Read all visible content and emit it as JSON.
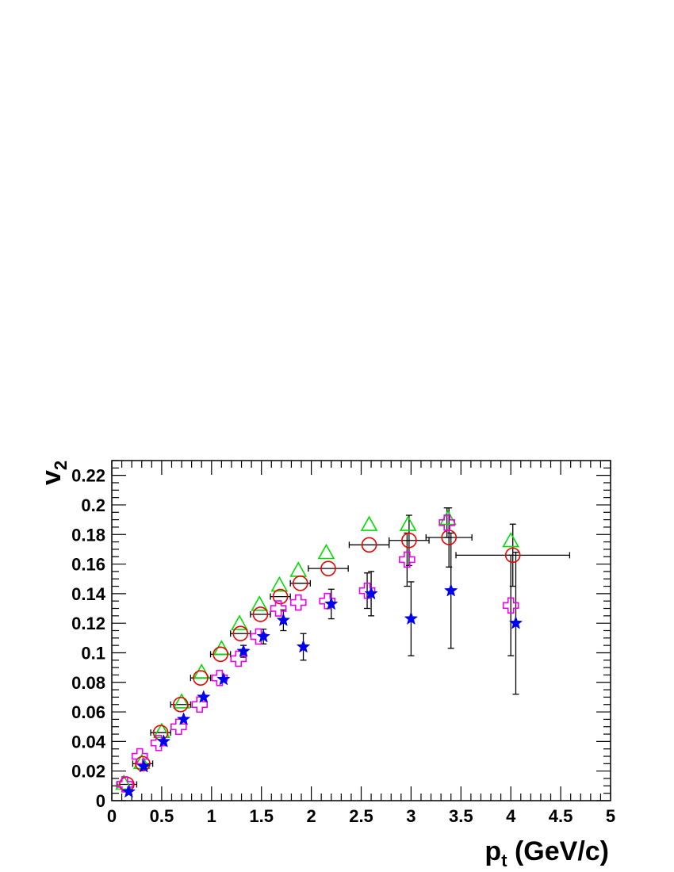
{
  "chart_data": {
    "type": "scatter",
    "title": "",
    "xlabel": "p",
    "xlabel_sub": "t",
    "xlabel_suffix": " (GeV/c)",
    "ylabel": "v",
    "ylabel_sub": "2",
    "xlim": [
      0,
      5
    ],
    "ylim": [
      0,
      0.23
    ],
    "grid": false,
    "legend": "none",
    "x_ticks": [
      {
        "v": 0,
        "label": "0"
      },
      {
        "v": 0.5,
        "label": "0.5"
      },
      {
        "v": 1,
        "label": "1"
      },
      {
        "v": 1.5,
        "label": "1.5"
      },
      {
        "v": 2,
        "label": "2"
      },
      {
        "v": 2.5,
        "label": "2.5"
      },
      {
        "v": 3,
        "label": "3"
      },
      {
        "v": 3.5,
        "label": "3.5"
      },
      {
        "v": 4,
        "label": "4"
      },
      {
        "v": 4.5,
        "label": "4.5"
      },
      {
        "v": 5,
        "label": "5"
      }
    ],
    "y_ticks": [
      {
        "v": 0,
        "label": "0"
      },
      {
        "v": 0.02,
        "label": "0.02"
      },
      {
        "v": 0.04,
        "label": "0.04"
      },
      {
        "v": 0.06,
        "label": "0.06"
      },
      {
        "v": 0.08,
        "label": "0.08"
      },
      {
        "v": 0.1,
        "label": "0.1"
      },
      {
        "v": 0.12,
        "label": "0.12"
      },
      {
        "v": 0.14,
        "label": "0.14"
      },
      {
        "v": 0.16,
        "label": "0.16"
      },
      {
        "v": 0.18,
        "label": "0.18"
      },
      {
        "v": 0.2,
        "label": "0.2"
      },
      {
        "v": 0.22,
        "label": "0.22"
      }
    ],
    "series": [
      {
        "marker": "triangle-open",
        "color": "#00dd00",
        "points": [
          {
            "x": 0.12,
            "y": 0.011
          },
          {
            "x": 0.3,
            "y": 0.025
          },
          {
            "x": 0.5,
            "y": 0.046
          },
          {
            "x": 0.7,
            "y": 0.066
          },
          {
            "x": 0.9,
            "y": 0.086
          },
          {
            "x": 1.1,
            "y": 0.102
          },
          {
            "x": 1.28,
            "y": 0.119
          },
          {
            "x": 1.48,
            "y": 0.132
          },
          {
            "x": 1.68,
            "y": 0.145
          },
          {
            "x": 1.87,
            "y": 0.155
          },
          {
            "x": 2.15,
            "y": 0.167
          },
          {
            "x": 2.58,
            "y": 0.186
          },
          {
            "x": 2.97,
            "y": 0.186
          },
          {
            "x": 3.37,
            "y": 0.19
          },
          {
            "x": 4.0,
            "y": 0.175
          }
        ]
      },
      {
        "marker": "circle-open",
        "color": "#ee0000",
        "points": [
          {
            "x": 0.15,
            "y": 0.011,
            "xerr": 0.1
          },
          {
            "x": 0.31,
            "y": 0.025,
            "xerr": 0.1
          },
          {
            "x": 0.49,
            "y": 0.046,
            "xerr": 0.1
          },
          {
            "x": 0.69,
            "y": 0.065,
            "xerr": 0.1
          },
          {
            "x": 0.89,
            "y": 0.083,
            "xerr": 0.1
          },
          {
            "x": 1.09,
            "y": 0.099,
            "xerr": 0.1
          },
          {
            "x": 1.29,
            "y": 0.113,
            "xerr": 0.1
          },
          {
            "x": 1.49,
            "y": 0.126,
            "xerr": 0.1
          },
          {
            "x": 1.69,
            "y": 0.138,
            "xerr": 0.1
          },
          {
            "x": 1.89,
            "y": 0.147,
            "xerr": 0.1
          },
          {
            "x": 2.17,
            "y": 0.157,
            "xerr": 0.2
          },
          {
            "x": 2.58,
            "y": 0.173,
            "xerr": 0.2
          },
          {
            "x": 2.98,
            "y": 0.176,
            "xerr": 0.2,
            "yerr": 0.017
          },
          {
            "x": 3.38,
            "y": 0.178,
            "xerr": 0.23,
            "yerr": 0.02
          },
          {
            "x": 4.02,
            "y": 0.166,
            "xerr": 0.57,
            "yerr": 0.021
          }
        ]
      },
      {
        "marker": "cross-open",
        "color": "#ee00ee",
        "points": [
          {
            "x": 0.13,
            "y": 0.011
          },
          {
            "x": 0.28,
            "y": 0.03
          },
          {
            "x": 0.47,
            "y": 0.039
          },
          {
            "x": 0.67,
            "y": 0.05
          },
          {
            "x": 0.88,
            "y": 0.065
          },
          {
            "x": 1.08,
            "y": 0.083
          },
          {
            "x": 1.27,
            "y": 0.096
          },
          {
            "x": 1.47,
            "y": 0.111
          },
          {
            "x": 1.67,
            "y": 0.13
          },
          {
            "x": 1.87,
            "y": 0.134
          },
          {
            "x": 2.16,
            "y": 0.135
          },
          {
            "x": 2.56,
            "y": 0.142,
            "yerr": 0.012
          },
          {
            "x": 2.96,
            "y": 0.163,
            "yerr": 0.018
          },
          {
            "x": 3.36,
            "y": 0.188,
            "yerr": 0.01
          },
          {
            "x": 4.0,
            "y": 0.132,
            "yerr": 0.034
          }
        ]
      },
      {
        "marker": "star-filled",
        "color": "#0000ee",
        "points": [
          {
            "x": 0.17,
            "y": 0.006
          },
          {
            "x": 0.32,
            "y": 0.023
          },
          {
            "x": 0.52,
            "y": 0.04
          },
          {
            "x": 0.72,
            "y": 0.055
          },
          {
            "x": 0.92,
            "y": 0.07
          },
          {
            "x": 1.12,
            "y": 0.082
          },
          {
            "x": 1.32,
            "y": 0.101,
            "yerr": 0.004
          },
          {
            "x": 1.52,
            "y": 0.111,
            "yerr": 0.005
          },
          {
            "x": 1.72,
            "y": 0.122,
            "yerr": 0.007
          },
          {
            "x": 1.92,
            "y": 0.104,
            "yerr": 0.009
          },
          {
            "x": 2.2,
            "y": 0.133,
            "yerr": 0.01
          },
          {
            "x": 2.6,
            "y": 0.14,
            "yerr": 0.015
          },
          {
            "x": 3.0,
            "y": 0.123,
            "yerr": 0.025
          },
          {
            "x": 3.4,
            "y": 0.142,
            "yerr": 0.039
          },
          {
            "x": 4.05,
            "y": 0.12,
            "yerr": 0.048
          }
        ]
      }
    ]
  }
}
